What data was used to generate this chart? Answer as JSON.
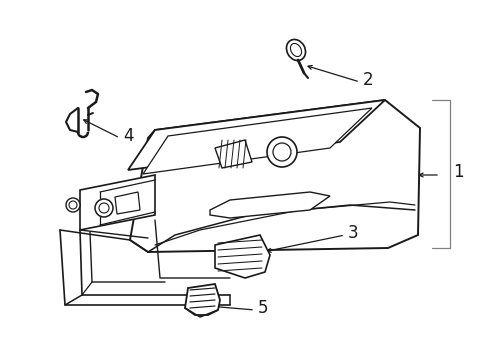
{
  "background_color": "#ffffff",
  "line_color": "#1a1a1a",
  "label_color": "#1a1a1a",
  "fig_width": 4.89,
  "fig_height": 3.6,
  "dpi": 100
}
